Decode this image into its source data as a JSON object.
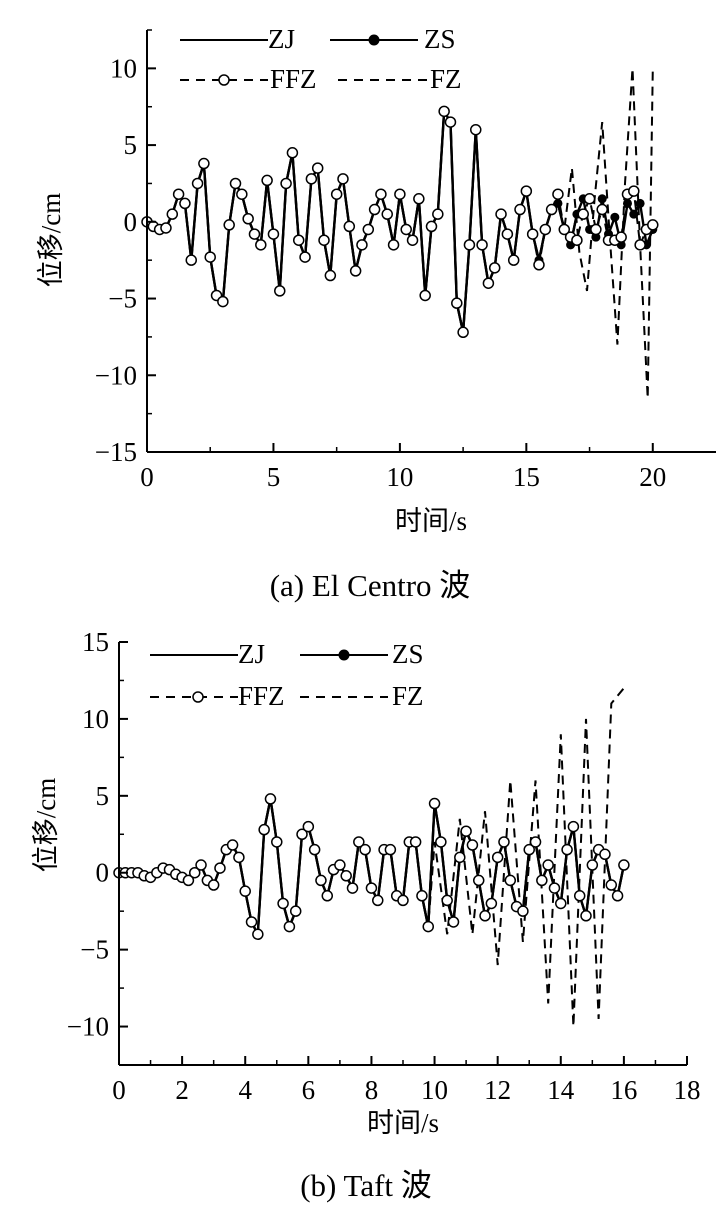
{
  "chart_data": [
    {
      "type": "line",
      "caption": "(a) El Centro  波",
      "xlabel": "时间/s",
      "ylabel": "位移/cm",
      "xlim": [
        0,
        22.5
      ],
      "ylim": [
        -15,
        12.5
      ],
      "xticks": [
        0,
        5,
        10,
        15,
        20
      ],
      "xtick_labels": [
        "0",
        "5",
        "10",
        "15",
        "20"
      ],
      "yticks": [
        -15,
        -10,
        -5,
        0,
        5,
        10
      ],
      "ytick_labels": [
        "−15",
        "−10",
        "−5",
        "0",
        "5",
        "10"
      ],
      "legend_position": "top",
      "series": [
        {
          "name": "ZJ",
          "style": "solid"
        },
        {
          "name": "ZS",
          "style": "solid-filled-marker"
        },
        {
          "name": "FFZ",
          "style": "dashed-open-marker"
        },
        {
          "name": "FZ",
          "style": "dashed"
        }
      ],
      "x": [
        0.0,
        0.25,
        0.5,
        0.75,
        1.0,
        1.25,
        1.5,
        1.75,
        2.0,
        2.25,
        2.5,
        2.75,
        3.0,
        3.25,
        3.5,
        3.75,
        4.0,
        4.25,
        4.5,
        4.75,
        5.0,
        5.25,
        5.5,
        5.75,
        6.0,
        6.25,
        6.5,
        6.75,
        7.0,
        7.25,
        7.5,
        7.75,
        8.0,
        8.25,
        8.5,
        8.75,
        9.0,
        9.25,
        9.5,
        9.75,
        10.0,
        10.25,
        10.5,
        10.75,
        11.0,
        11.25,
        11.5,
        11.75,
        12.0,
        12.25,
        12.5,
        12.75,
        13.0,
        13.25,
        13.5,
        13.75,
        14.0,
        14.25,
        14.5,
        14.75,
        15.0,
        15.25,
        15.5,
        15.75,
        16.0,
        16.25,
        16.5,
        16.75,
        17.0
      ],
      "y_common": [
        0,
        -0.3,
        -0.5,
        -0.4,
        0.5,
        1.8,
        1.2,
        -2.5,
        2.5,
        3.8,
        -2.3,
        -4.8,
        -5.2,
        -0.2,
        2.5,
        1.8,
        0.2,
        -0.8,
        -1.5,
        2.7,
        -0.8,
        -4.5,
        2.5,
        4.5,
        -1.2,
        -2.3,
        2.8,
        3.5,
        -1.2,
        -3.5,
        1.8,
        2.8,
        -0.3,
        -3.2,
        -1.5,
        -0.5,
        0.8,
        1.8,
        0.5,
        -1.5,
        1.8,
        -0.5,
        -1.2,
        1.5,
        -4.8,
        -0.3,
        0.5,
        7.2,
        6.5,
        -5.3,
        -7.2,
        -1.5,
        6.0,
        -1.5,
        -4.0,
        -3.0,
        0.5,
        -0.8,
        -2.5,
        0.8,
        2.0,
        -0.8,
        -2.5,
        -0.5,
        0.8,
        1.2,
        -0.5,
        -1.5,
        0.5
      ],
      "zs_x": [
        15.25,
        15.5,
        15.75,
        16.0,
        16.25,
        16.5,
        16.75,
        17.0,
        17.25,
        17.5,
        17.75,
        18.0,
        18.25,
        18.5,
        18.75,
        19.0,
        19.25,
        19.5,
        19.75,
        20.0
      ],
      "zs_y": [
        -0.8,
        -2.5,
        -0.5,
        0.8,
        1.2,
        -0.5,
        -1.5,
        0.5,
        1.5,
        -0.5,
        -1.0,
        1.5,
        -0.8,
        0.3,
        -1.5,
        1.2,
        0.5,
        1.2,
        -1.5,
        -0.5
      ],
      "ffz_x": [
        15.25,
        15.5,
        15.75,
        16.0,
        16.25,
        16.5,
        16.75,
        17.0,
        17.25,
        17.5,
        17.75,
        18.0,
        18.25,
        18.5,
        18.75,
        19.0,
        19.25,
        19.5,
        19.75,
        20.0
      ],
      "ffz_y": [
        -0.8,
        -2.8,
        -0.5,
        0.8,
        1.8,
        -0.5,
        -1.0,
        -1.2,
        0.5,
        1.5,
        -0.5,
        0.8,
        -1.2,
        -1.2,
        -1.0,
        1.8,
        2.0,
        -1.5,
        -0.5,
        -0.2
      ],
      "fz_x": [
        16.5,
        16.8,
        17.1,
        17.4,
        17.7,
        18.0,
        18.3,
        18.6,
        18.9,
        19.2,
        19.5,
        19.8,
        20.0
      ],
      "fz_y": [
        -0.5,
        3.5,
        -2.0,
        -4.5,
        1.5,
        6.5,
        -1.0,
        -8.0,
        2.5,
        10.0,
        -1.5,
        -11.5,
        10.0
      ]
    },
    {
      "type": "line",
      "caption": "(b) Taft  波",
      "xlabel": "时间/s",
      "ylabel": "位移/cm",
      "xlim": [
        0,
        18
      ],
      "ylim": [
        -12.5,
        15
      ],
      "xticks": [
        0,
        2,
        4,
        6,
        8,
        10,
        12,
        14,
        16,
        18
      ],
      "xtick_labels": [
        "0",
        "2",
        "4",
        "6",
        "8",
        "10",
        "12",
        "14",
        "16",
        "18"
      ],
      "yticks": [
        -10,
        -5,
        0,
        5,
        10,
        15
      ],
      "ytick_labels": [
        "−10",
        "−5",
        "0",
        "5",
        "10",
        "15"
      ],
      "legend_position": "top",
      "series": [
        {
          "name": "ZJ",
          "style": "solid"
        },
        {
          "name": "ZS",
          "style": "solid-filled-marker"
        },
        {
          "name": "FFZ",
          "style": "dashed-open-marker"
        },
        {
          "name": "FZ",
          "style": "dashed"
        }
      ],
      "x": [
        0.0,
        0.2,
        0.4,
        0.6,
        0.8,
        1.0,
        1.2,
        1.4,
        1.6,
        1.8,
        2.0,
        2.2,
        2.4,
        2.6,
        2.8,
        3.0,
        3.2,
        3.4,
        3.6,
        3.8,
        4.0,
        4.2,
        4.4,
        4.6,
        4.8,
        5.0,
        5.2,
        5.4,
        5.6,
        5.8,
        6.0,
        6.2,
        6.4,
        6.6,
        6.8,
        7.0,
        7.2,
        7.4,
        7.6,
        7.8,
        8.0,
        8.2,
        8.4,
        8.6,
        8.8,
        9.0,
        9.2,
        9.4,
        9.6,
        9.8,
        10.0,
        10.2,
        10.4,
        10.6,
        10.8,
        11.0,
        11.2,
        11.4,
        11.6,
        11.8,
        12.0,
        12.2,
        12.4,
        12.6,
        12.8,
        13.0,
        13.2,
        13.4,
        13.6,
        13.8,
        14.0,
        14.2,
        14.4,
        14.6,
        14.8,
        15.0,
        15.2,
        15.4,
        15.6,
        15.8,
        16.0
      ],
      "y_common": [
        0,
        0,
        0,
        0,
        -0.2,
        -0.3,
        0,
        0.3,
        0.2,
        -0.1,
        -0.3,
        -0.5,
        0,
        0.5,
        -0.5,
        -0.8,
        0.3,
        1.5,
        1.8,
        1.0,
        -1.2,
        -3.2,
        -4.0,
        2.8,
        4.8,
        2.0,
        -2.0,
        -3.5,
        -2.5,
        2.5,
        3.0,
        1.5,
        -0.5,
        -1.5,
        0.2,
        0.5,
        -0.2,
        -1.0,
        2.0,
        1.5,
        -1.0,
        -1.8,
        1.5,
        1.5,
        -1.5,
        -1.8,
        2.0,
        2.0,
        -1.5,
        -3.5,
        4.5,
        2.0,
        -1.8,
        -3.2,
        1.0,
        2.7,
        1.8,
        -0.5,
        -2.8,
        -2.0,
        1.0,
        2.0,
        -0.5,
        -2.2,
        -2.5,
        1.5,
        2.0,
        -0.5,
        0.5,
        -1.0,
        -2.0,
        1.5,
        3.0,
        -1.5,
        -2.8,
        0.5,
        1.5,
        1.2,
        -0.8,
        -1.5,
        0.5
      ],
      "fz_x": [
        10.0,
        10.4,
        10.8,
        11.2,
        11.6,
        12.0,
        12.4,
        12.8,
        13.2,
        13.6,
        14.0,
        14.4,
        14.8,
        15.2,
        15.6,
        16.0
      ],
      "fz_y": [
        2.0,
        -4.0,
        3.5,
        -4.0,
        4.0,
        -6.0,
        6.0,
        -4.5,
        6.0,
        -8.5,
        9.0,
        -10.0,
        10.0,
        -9.5,
        11.0,
        12.0
      ]
    }
  ]
}
